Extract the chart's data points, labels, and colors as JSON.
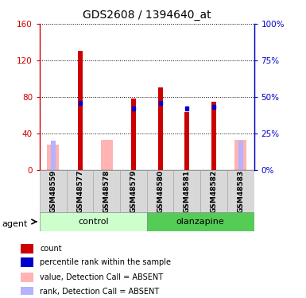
{
  "title": "GDS2608 / 1394640_at",
  "samples": [
    "GSM48559",
    "GSM48577",
    "GSM48578",
    "GSM48579",
    "GSM48580",
    "GSM48581",
    "GSM48582",
    "GSM48583"
  ],
  "count_values": [
    0,
    130,
    0,
    78,
    90,
    63,
    75,
    0
  ],
  "rank_pct": [
    0,
    46,
    0,
    42,
    46,
    42,
    43,
    0
  ],
  "absent_value": [
    28,
    0,
    33,
    0,
    0,
    0,
    0,
    33
  ],
  "absent_rank_pct": [
    20,
    0,
    0,
    0,
    0,
    0,
    0,
    20
  ],
  "color_count": "#cc0000",
  "color_rank": "#0000cc",
  "color_absent_value": "#ffb3b3",
  "color_absent_rank": "#b3b3ff",
  "ylim_left": [
    0,
    160
  ],
  "ylim_right": [
    0,
    100
  ],
  "yticks_left": [
    0,
    40,
    80,
    120,
    160
  ],
  "yticks_right": [
    0,
    25,
    50,
    75,
    100
  ],
  "ytick_labels_left": [
    "0",
    "40",
    "80",
    "120",
    "160"
  ],
  "ytick_labels_right": [
    "0%",
    "25%",
    "50%",
    "75%",
    "100%"
  ],
  "group_colors_light": "#ccffcc",
  "group_colors_dark": "#55cc55",
  "legend_items": [
    {
      "label": "count",
      "color": "#cc0000"
    },
    {
      "label": "percentile rank within the sample",
      "color": "#0000cc"
    },
    {
      "label": "value, Detection Call = ABSENT",
      "color": "#ffb3b3"
    },
    {
      "label": "rank, Detection Call = ABSENT",
      "color": "#b3b3ff"
    }
  ]
}
